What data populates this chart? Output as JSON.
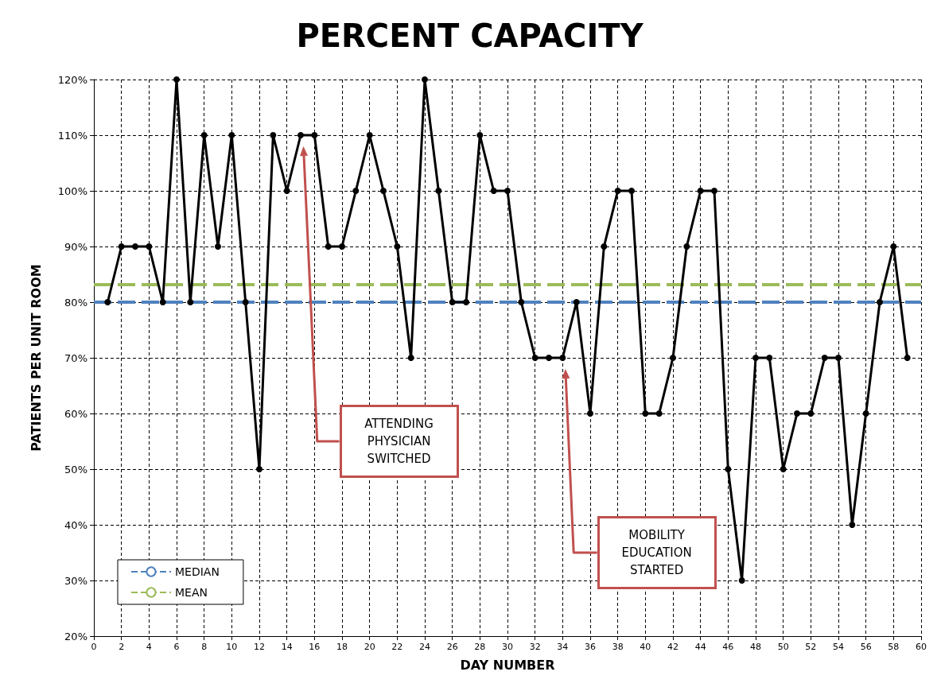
{
  "chart_data": {
    "type": "line",
    "title": "PERCENT CAPACITY",
    "xlabel": "DAY NUMBER",
    "ylabel": "PATIENTS PER UNIT ROOM",
    "x": [
      1,
      2,
      3,
      4,
      5,
      6,
      7,
      8,
      9,
      10,
      11,
      12,
      13,
      14,
      15,
      16,
      17,
      18,
      19,
      20,
      21,
      22,
      23,
      24,
      25,
      26,
      27,
      28,
      29,
      30,
      31,
      32,
      33,
      34,
      35,
      36,
      37,
      38,
      39,
      40,
      41,
      42,
      43,
      44,
      45,
      46,
      47,
      48,
      49,
      50,
      51,
      52,
      53,
      54,
      55,
      56,
      57,
      58,
      59
    ],
    "series": [
      {
        "color": "#000000",
        "values": [
          80,
          90,
          90,
          90,
          80,
          120,
          80,
          110,
          90,
          110,
          80,
          50,
          110,
          100,
          110,
          110,
          90,
          90,
          100,
          110,
          100,
          90,
          70,
          120,
          100,
          80,
          80,
          110,
          100,
          100,
          80,
          70,
          70,
          70,
          80,
          60,
          90,
          100,
          100,
          60,
          60,
          70,
          90,
          100,
          100,
          50,
          30,
          70,
          70,
          50,
          60,
          60,
          70,
          70,
          40,
          60,
          80,
          90,
          70
        ]
      }
    ],
    "xlim": [
      0,
      60
    ],
    "xticks": [
      0,
      2,
      4,
      6,
      8,
      10,
      12,
      14,
      16,
      18,
      20,
      22,
      24,
      26,
      28,
      30,
      32,
      34,
      36,
      38,
      40,
      42,
      44,
      46,
      48,
      50,
      52,
      54,
      56,
      58,
      60
    ],
    "ylim": [
      20,
      120
    ],
    "yticks": [
      {
        "value": 20,
        "label": "20%"
      },
      {
        "value": 30,
        "label": "30%"
      },
      {
        "value": 40,
        "label": "40%"
      },
      {
        "value": 50,
        "label": "50%"
      },
      {
        "value": 60,
        "label": "60%"
      },
      {
        "value": 70,
        "label": "70%"
      },
      {
        "value": 80,
        "label": "80%"
      },
      {
        "value": 90,
        "label": "90%"
      },
      {
        "value": 100,
        "label": "100%"
      },
      {
        "value": 110,
        "label": "110%"
      },
      {
        "value": 120,
        "label": "120%"
      }
    ],
    "ref_lines": [
      {
        "axis": "y",
        "value": 80,
        "label": "MEDIAN",
        "color": "#4f81bd",
        "line_style": "dashed"
      },
      {
        "axis": "y",
        "value": 83.2,
        "label": "MEAN",
        "color": "#9bbb59",
        "line_style": "dashed"
      }
    ],
    "annotations": [
      "ATTENDING PHYSICIAN SWITCHED",
      "MOBILITY EDUCATION STARTED"
    ],
    "grid": true,
    "legend": "bottom left",
    "marker": "circle",
    "line_style": "solid"
  }
}
